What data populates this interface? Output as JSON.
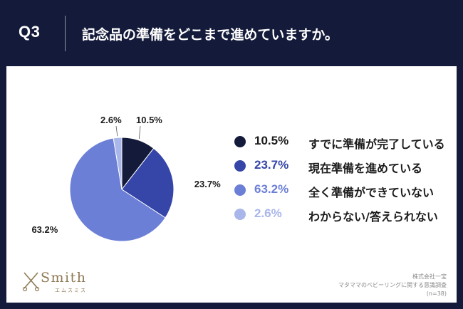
{
  "header": {
    "q_label": "Q3",
    "question": "記念品の準備をどこまで進めていますか。"
  },
  "chart_data": {
    "type": "pie",
    "slices": [
      {
        "pct_label": "10.5%",
        "value": 10.5,
        "label": "すでに準備が完了している",
        "color": "#141a3a"
      },
      {
        "pct_label": "23.7%",
        "value": 23.7,
        "label": "現在準備を進めている",
        "color": "#3546a8"
      },
      {
        "pct_label": "63.2%",
        "value": 63.2,
        "label": "全く準備ができていない",
        "color": "#6c7fd6"
      },
      {
        "pct_label": "2.6%",
        "value": 2.6,
        "label": "わからない/答えられない",
        "color": "#a9b6ea"
      }
    ]
  },
  "logo": {
    "name": "Smith",
    "sub": "エムスミス",
    "icon": "scissors-icon"
  },
  "footer": {
    "company": "株式会社一宝",
    "survey": "マタママのベビーリングに関する意識調査",
    "n": "(n=38)"
  }
}
